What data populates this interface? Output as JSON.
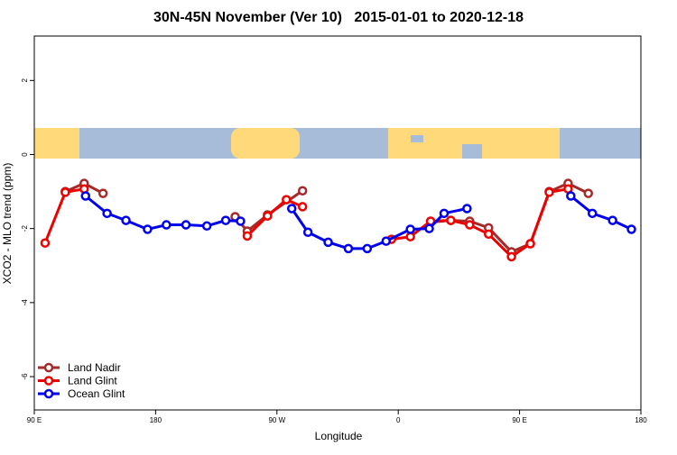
{
  "chart_data": {
    "type": "line",
    "title": "30N-45N November (Ver 10)   2015-01-01 to 2020-12-18",
    "x_label": "Longitude",
    "y_label": "XCO2 - MLO trend (ppm)",
    "xlim": [
      90,
      540
    ],
    "xticks": [
      {
        "value": 90,
        "label": "90 E"
      },
      {
        "value": 180,
        "label": "180"
      },
      {
        "value": 270,
        "label": "90 W"
      },
      {
        "value": 360,
        "label": "0"
      },
      {
        "value": 450,
        "label": "90 E"
      },
      {
        "value": 540,
        "label": "180"
      }
    ],
    "ylim": [
      -6.9,
      3.2
    ],
    "yticks": [
      -6,
      -4,
      -2,
      0,
      2
    ],
    "legend": "bottom-left",
    "series": [
      {
        "name": "Land Nadir",
        "color": "#a52a2a",
        "x": [
          113,
          127,
          141,
          null,
          239,
          248,
          263,
          289,
          null,
          384,
          399,
          413,
          427,
          444,
          458,
          472,
          486,
          501
        ],
        "values": [
          -1.0,
          -0.78,
          -1.05,
          null,
          -1.68,
          -2.07,
          -1.63,
          -0.98,
          null,
          -1.83,
          -1.78,
          -1.8,
          -1.98,
          -2.63,
          -2.41,
          -1.0,
          -0.78,
          -1.05
        ]
      },
      {
        "name": "Land Glint",
        "color": "#ee0000",
        "x": [
          98,
          113,
          127,
          null,
          248,
          263,
          277,
          289,
          null,
          355,
          369,
          384,
          399,
          413,
          427,
          444,
          458,
          472,
          486
        ],
        "values": [
          -2.39,
          -1.02,
          -0.93,
          null,
          -2.2,
          -1.66,
          -1.22,
          -1.41,
          null,
          -2.29,
          -2.22,
          -1.8,
          -1.78,
          -1.9,
          -2.15,
          -2.76,
          -2.41,
          -1.02,
          -0.93
        ]
      },
      {
        "name": "Ocean Glint",
        "color": "#0000ee",
        "x": [
          128,
          144,
          158,
          174,
          188,
          202.5,
          218,
          232,
          243,
          null,
          281,
          293,
          308,
          323,
          337,
          351,
          369,
          383,
          394,
          411,
          null,
          488,
          504,
          519,
          533
        ],
        "values": [
          -1.12,
          -1.59,
          -1.78,
          -2.02,
          -1.9,
          -1.9,
          -1.93,
          -1.78,
          -1.8,
          null,
          -1.46,
          -2.1,
          -2.37,
          -2.54,
          -2.54,
          -2.34,
          -2.02,
          -2.0,
          -1.59,
          -1.46,
          null,
          -1.12,
          -1.59,
          -1.78,
          -2.02
        ]
      }
    ]
  }
}
